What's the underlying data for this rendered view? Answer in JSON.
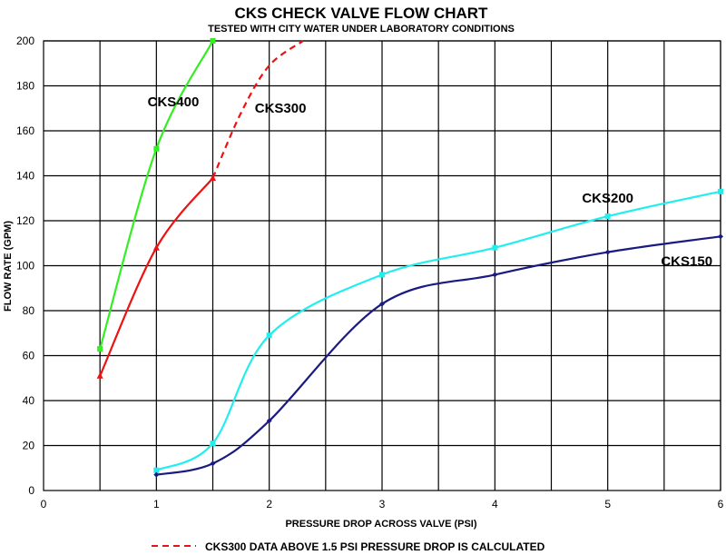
{
  "chart_data": {
    "type": "line",
    "title": "CKS CHECK VALVE FLOW CHART",
    "subtitle": "TESTED WITH CITY WATER UNDER LABORATORY  CONDITIONS",
    "xlabel": "PRESSURE DROP ACROSS VALVE  (PSI)",
    "ylabel": "FLOW RATE  (GPM)",
    "xlim": [
      0,
      6
    ],
    "ylim": [
      0,
      200
    ],
    "x_ticks": [
      "0",
      "1",
      "2",
      "3",
      "4",
      "5",
      "6"
    ],
    "y_ticks": [
      "0",
      "20",
      "40",
      "60",
      "80",
      "100",
      "120",
      "140",
      "160",
      "180",
      "200"
    ],
    "grid": true,
    "series": [
      {
        "name": "CKS400",
        "color": "#33ee22",
        "marker": "square",
        "points": [
          [
            0.5,
            63
          ],
          [
            1.0,
            152
          ],
          [
            1.5,
            200
          ]
        ]
      },
      {
        "name": "CKS300",
        "color": "#ee1111",
        "marker": "triangle",
        "points": [
          [
            0.5,
            51
          ],
          [
            1.0,
            108
          ],
          [
            1.5,
            139
          ]
        ],
        "calculated_points": [
          [
            1.5,
            139
          ],
          [
            1.75,
            168
          ],
          [
            2.0,
            189
          ],
          [
            2.3,
            200
          ]
        ]
      },
      {
        "name": "CKS200",
        "color": "#22eeee",
        "marker": "square",
        "points": [
          [
            1.0,
            9
          ],
          [
            1.5,
            21
          ],
          [
            2.0,
            69
          ],
          [
            3.0,
            96
          ],
          [
            4.0,
            108
          ],
          [
            5.0,
            122
          ],
          [
            6.0,
            133
          ]
        ]
      },
      {
        "name": "CKS150",
        "color": "#1a1a80",
        "marker": "diamond",
        "points": [
          [
            1.0,
            7
          ],
          [
            1.5,
            12
          ],
          [
            2.0,
            31
          ],
          [
            3.0,
            83
          ],
          [
            4.0,
            96
          ],
          [
            5.0,
            106
          ],
          [
            6.0,
            113
          ]
        ]
      }
    ],
    "legend": {
      "position": "bottom-center",
      "entries": [
        {
          "text": "CKS300 DATA ABOVE 1.5 PSI PRESSURE DROP IS CALCULATED",
          "color": "#ee1111",
          "style": "dashed"
        }
      ]
    }
  }
}
